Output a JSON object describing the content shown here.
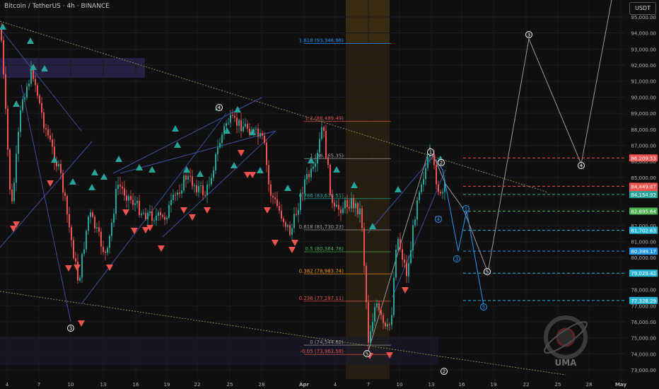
{
  "header": {
    "symbol_line": "Bitcoin / TetherUS · 4h · BINANCE",
    "currency_button": "USDT"
  },
  "colors": {
    "background": "#0f0f10",
    "up": "#26a69a",
    "down": "#ef5350",
    "channel": "#3d4f9a",
    "fib_blue": "#2196f3",
    "fib_red": "#e0574f",
    "fib_green": "#4caf50"
  },
  "chart_data": {
    "type": "candlestick",
    "title": "Bitcoin / TetherUS · 4h · BINANCE",
    "y_axis": {
      "ylim": [
        72700,
        95900
      ],
      "ticks": [
        73000,
        74000,
        75000,
        76000,
        77000,
        78000,
        79000,
        80000,
        81000,
        82000,
        83000,
        84000,
        85000,
        86000,
        87000,
        88000,
        89000,
        90000,
        91000,
        92000,
        93000,
        94000,
        95000
      ],
      "tick_labels": [
        "73,000.00",
        "74,000.00",
        "75,000.00",
        "76,000.00",
        "77,000.00",
        "78,000.00",
        "79,000.00",
        "80,000.00",
        "81,000.00",
        "82,000.00",
        "83,000.00",
        "84,000.00",
        "85,000.00",
        "86,000.00",
        "87,000.00",
        "88,000.00",
        "89,000.00",
        "90,000.00",
        "91,000.00",
        "92,000.00",
        "93,000.00",
        "94,000.00",
        "95,000.00"
      ]
    },
    "x_axis": {
      "tick_labels": [
        "4",
        "7",
        "10",
        "13",
        "16",
        "19",
        "22",
        "25",
        "28",
        "Apr",
        "4",
        "7",
        "10",
        "13",
        "16",
        "19",
        "22",
        "25",
        "28",
        "May"
      ],
      "tick_bold": [
        false,
        false,
        false,
        false,
        false,
        false,
        false,
        false,
        false,
        true,
        false,
        false,
        false,
        false,
        false,
        false,
        false,
        false,
        false,
        true
      ]
    },
    "price_labels": [
      {
        "text": "86,209.53",
        "price": 86209.53,
        "bg": "#ef5350",
        "fg": "#ffffff",
        "lines": 1
      },
      {
        "text": "84,449.07",
        "extra": "01:56:33",
        "price": 84449.07,
        "bg": "#ef5350",
        "fg": "#ffffff",
        "lines": 2
      },
      {
        "text": "84,154.92",
        "price": 83930,
        "bg": "#26a69a",
        "fg": "#ffffff",
        "lines": 1
      },
      {
        "text": "82,895.64",
        "price": 82895.64,
        "bg": "#4caf50",
        "fg": "#ffffff",
        "lines": 1
      },
      {
        "text": "81,702.63",
        "price": 81702.63,
        "bg": "#29b6d6",
        "fg": "#ffffff",
        "lines": 1
      },
      {
        "text": "80,399.17",
        "price": 80399.17,
        "bg": "#2196f3",
        "fg": "#ffffff",
        "lines": 1
      },
      {
        "text": "79,029.42",
        "price": 79029.42,
        "bg": "#29b6d6",
        "fg": "#ffffff",
        "lines": 1
      },
      {
        "text": "77,328.29",
        "price": 77328.29,
        "bg": "#29b6d6",
        "fg": "#ffffff",
        "lines": 1
      }
    ],
    "fib_levels": [
      {
        "label": "1.618 (93,346.96)",
        "price": 93346.96,
        "color": "#2196f3"
      },
      {
        "label": "1.2 (88,489.49)",
        "price": 88489.49,
        "color": "#e0574f"
      },
      {
        "label": "1 (86,165.35)",
        "price": 86165.35,
        "color": "#9e9e9e"
      },
      {
        "label": "0.786 (83,678.51)",
        "price": 83678.51,
        "color": "#26a69a"
      },
      {
        "label": "0.618 (81,730.23)",
        "price": 81730.23,
        "color": "#9e9e9e"
      },
      {
        "label": "0.5 (80,364.78)",
        "price": 80364.78,
        "color": "#4caf50"
      },
      {
        "label": "0.382 (78,983.74)",
        "price": 78983.74,
        "color": "#ff9800"
      },
      {
        "label": "0.236 (77,287.11)",
        "price": 77287.11,
        "color": "#e0574f"
      },
      {
        "label": "0 (74,544.62)",
        "price": 74544.62,
        "color": "#9e9e9e"
      },
      {
        "label": "-0.05 (73,963.58)",
        "price": 73963.58,
        "color": "#e0574f"
      }
    ],
    "wave_labels": [
      {
        "text": "3",
        "color": "#ffffff"
      },
      {
        "text": "4",
        "color": "#ffffff"
      },
      {
        "text": "5",
        "color": "#ffffff"
      },
      {
        "text": "1",
        "color": "#ffffff"
      },
      {
        "text": "2",
        "color": "#ffffff"
      },
      {
        "text": "3",
        "color": "#ffffff"
      },
      {
        "text": "4",
        "color": "#ffffff"
      },
      {
        "text": "5",
        "color": "#ffffff"
      },
      {
        "text": "2",
        "color": "#ffffff"
      },
      {
        "text": "1",
        "color": "#2196f3"
      },
      {
        "text": "3",
        "color": "#2196f3"
      },
      {
        "text": "5",
        "color": "#2196f3"
      },
      {
        "text": "4",
        "color": "#2196f3"
      }
    ],
    "watermark": "UMA"
  }
}
